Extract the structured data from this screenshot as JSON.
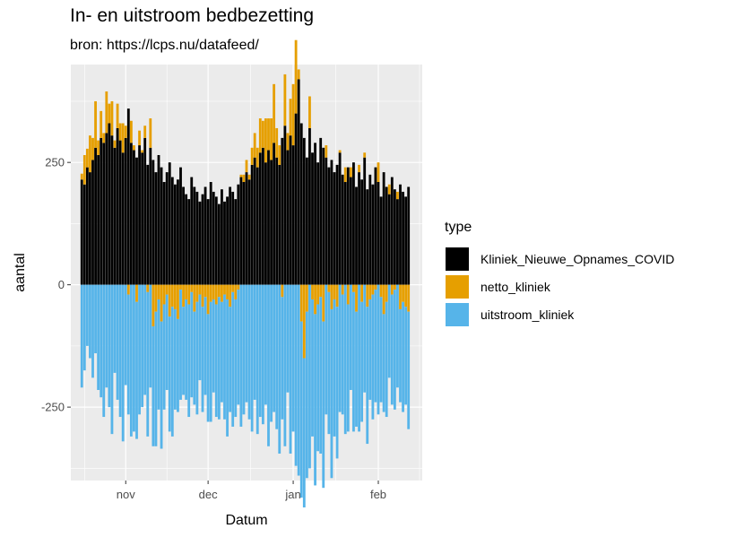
{
  "chart_data": {
    "type": "bar",
    "title": "In- en uitstroom bedbezetting",
    "subtitle": "bron: https://lcps.nu/datafeed/",
    "xlabel": "Datum",
    "ylabel": "aantal",
    "x_start": "2020-10-16",
    "x_end": "2021-02-13",
    "xlim": [
      "2020-10-12",
      "2021-02-17"
    ],
    "ylim": [
      -400,
      450
    ],
    "y_ticks": [
      -250,
      0,
      250
    ],
    "x_ticks": [
      {
        "label": "nov",
        "date": "2020-11-01"
      },
      {
        "label": "dec",
        "date": "2020-12-01"
      },
      {
        "label": "jan",
        "date": "2021-01-01"
      },
      {
        "label": "feb",
        "date": "2021-02-01"
      }
    ],
    "grid": true,
    "legend_position": "right",
    "legend_title": "type",
    "series": [
      {
        "name": "Kliniek_Nieuwe_Opnames_COVID",
        "color": "#000000",
        "values": [
          215,
          205,
          240,
          230,
          255,
          280,
          265,
          300,
          290,
          310,
          330,
          305,
          280,
          320,
          295,
          270,
          300,
          360,
          290,
          275,
          260,
          285,
          270,
          300,
          245,
          280,
          255,
          230,
          265,
          240,
          210,
          230,
          250,
          220,
          205,
          215,
          240,
          200,
          185,
          175,
          220,
          200,
          190,
          170,
          185,
          200,
          175,
          210,
          190,
          180,
          165,
          195,
          170,
          180,
          200,
          190,
          175,
          205,
          220,
          210,
          230,
          215,
          245,
          260,
          240,
          270,
          280,
          250,
          275,
          255,
          290,
          260,
          245,
          300,
          325,
          275,
          305,
          285,
          350,
          420,
          330,
          300,
          260,
          320,
          270,
          290,
          250,
          300,
          280,
          260,
          240,
          255,
          230,
          245,
          270,
          225,
          210,
          240,
          220,
          250,
          200,
          230,
          215,
          260,
          195,
          225,
          205,
          240,
          210,
          180,
          230,
          200,
          185,
          220,
          195,
          175,
          205,
          190,
          180,
          200
        ]
      },
      {
        "name": "netto_kliniek",
        "color": "#E69F00",
        "values": [
          12,
          60,
          38,
          75,
          45,
          95,
          30,
          55,
          20,
          85,
          40,
          70,
          15,
          50,
          35,
          60,
          25,
          -20,
          45,
          10,
          -35,
          30,
          5,
          25,
          -15,
          60,
          -85,
          -55,
          -30,
          -75,
          -40,
          -20,
          -65,
          -45,
          -50,
          -70,
          -10,
          -45,
          -30,
          -40,
          -15,
          -55,
          -35,
          -20,
          -45,
          -25,
          -60,
          -35,
          -30,
          -40,
          -25,
          -35,
          -20,
          -30,
          -45,
          -15,
          -30,
          -10,
          5,
          15,
          25,
          10,
          35,
          50,
          40,
          70,
          55,
          90,
          65,
          85,
          120,
          60,
          40,
          -25,
          105,
          35,
          75,
          125,
          150,
          20,
          -75,
          -150,
          -55,
          65,
          -30,
          -60,
          -40,
          -25,
          -75,
          25,
          -15,
          -50,
          -30,
          -45,
          5,
          -20,
          30,
          -40,
          20,
          -15,
          -55,
          15,
          -35,
          10,
          -45,
          -30,
          -20,
          -10,
          40,
          -25,
          -60,
          -35,
          20,
          -20,
          -10,
          15,
          -50,
          -35,
          -45,
          -55
        ]
      },
      {
        "name": "uitstroom_kliniek",
        "color": "#56B4E9",
        "values": [
          -210,
          -175,
          -125,
          -150,
          -190,
          -140,
          -215,
          -230,
          -270,
          -210,
          -250,
          -305,
          -180,
          -235,
          -270,
          -320,
          -205,
          -245,
          -310,
          -300,
          -280,
          -265,
          -250,
          -225,
          -295,
          -210,
          -245,
          -275,
          -225,
          -260,
          -215,
          -195,
          -235,
          -265,
          -205,
          -190,
          -225,
          -180,
          -205,
          -230,
          -215,
          -190,
          -230,
          -175,
          -215,
          -200,
          -220,
          -245,
          -190,
          -230,
          -250,
          -205,
          -255,
          -280,
          -215,
          -275,
          -240,
          -235,
          -290,
          -265,
          -240,
          -275,
          -300,
          -235,
          -305,
          -270,
          -285,
          -245,
          -330,
          -280,
          -260,
          -295,
          -345,
          -250,
          -330,
          -220,
          -345,
          -300,
          -370,
          -390,
          -360,
          -305,
          -340,
          -375,
          -280,
          -350,
          -300,
          -320,
          -340,
          -265,
          -290,
          -345,
          -280,
          -310,
          -260,
          -245,
          -305,
          -260,
          -215,
          -285,
          -235,
          -300,
          -245,
          -220,
          -280,
          -205,
          -255,
          -230,
          -265,
          -215,
          -200,
          -235,
          -190,
          -225,
          -245,
          -210,
          -190,
          -225,
          -200,
          -240
        ]
      }
    ]
  }
}
